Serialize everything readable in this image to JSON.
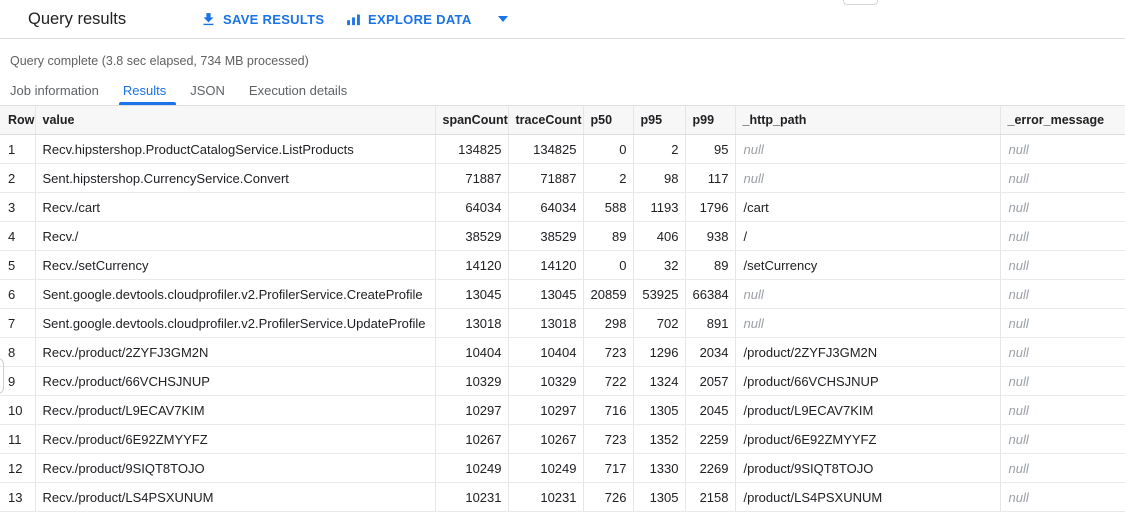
{
  "toolbar": {
    "title": "Query results",
    "save_results_label": "SAVE RESULTS",
    "explore_data_label": "EXPLORE DATA",
    "icons": {
      "save": "download-icon",
      "explore": "bar-chart-icon",
      "explore_menu": "caret-down-icon"
    }
  },
  "status": {
    "message": "Query complete (3.8 sec elapsed, 734 MB processed)"
  },
  "tabs": [
    {
      "label": "Job information",
      "active": false
    },
    {
      "label": "Results",
      "active": true
    },
    {
      "label": "JSON",
      "active": false
    },
    {
      "label": "Execution details",
      "active": false
    }
  ],
  "colors": {
    "accent_blue": "#1a73e8",
    "text": "#202124",
    "secondary_text": "#5f6368",
    "null_text": "#9aa0a6",
    "header_bg": "#f7f7f7",
    "border": "#e6e6e6"
  },
  "table": {
    "null_display": "null",
    "columns": [
      "Row",
      "value",
      "spanCount",
      "traceCount",
      "p50",
      "p95",
      "p99",
      "_http_path",
      "_error_message"
    ],
    "rows": [
      [
        "1",
        "Recv.hipstershop.ProductCatalogService.ListProducts",
        "134825",
        "134825",
        "0",
        "2",
        "95",
        "null",
        "null"
      ],
      [
        "2",
        "Sent.hipstershop.CurrencyService.Convert",
        "71887",
        "71887",
        "2",
        "98",
        "117",
        "null",
        "null"
      ],
      [
        "3",
        "Recv./cart",
        "64034",
        "64034",
        "588",
        "1193",
        "1796",
        "/cart",
        "null"
      ],
      [
        "4",
        "Recv./",
        "38529",
        "38529",
        "89",
        "406",
        "938",
        "/",
        "null"
      ],
      [
        "5",
        "Recv./setCurrency",
        "14120",
        "14120",
        "0",
        "32",
        "89",
        "/setCurrency",
        "null"
      ],
      [
        "6",
        "Sent.google.devtools.cloudprofiler.v2.ProfilerService.CreateProfile",
        "13045",
        "13045",
        "20859",
        "53925",
        "66384",
        "null",
        "null"
      ],
      [
        "7",
        "Sent.google.devtools.cloudprofiler.v2.ProfilerService.UpdateProfile",
        "13018",
        "13018",
        "298",
        "702",
        "891",
        "null",
        "null"
      ],
      [
        "8",
        "Recv./product/2ZYFJ3GM2N",
        "10404",
        "10404",
        "723",
        "1296",
        "2034",
        "/product/2ZYFJ3GM2N",
        "null"
      ],
      [
        "9",
        "Recv./product/66VCHSJNUP",
        "10329",
        "10329",
        "722",
        "1324",
        "2057",
        "/product/66VCHSJNUP",
        "null"
      ],
      [
        "10",
        "Recv./product/L9ECAV7KIM",
        "10297",
        "10297",
        "716",
        "1305",
        "2045",
        "/product/L9ECAV7KIM",
        "null"
      ],
      [
        "11",
        "Recv./product/6E92ZMYYFZ",
        "10267",
        "10267",
        "723",
        "1352",
        "2259",
        "/product/6E92ZMYYFZ",
        "null"
      ],
      [
        "12",
        "Recv./product/9SIQT8TOJO",
        "10249",
        "10249",
        "717",
        "1330",
        "2269",
        "/product/9SIQT8TOJO",
        "null"
      ],
      [
        "13",
        "Recv./product/LS4PSXUNUM",
        "10231",
        "10231",
        "726",
        "1305",
        "2158",
        "/product/LS4PSXUNUM",
        "null"
      ]
    ]
  }
}
